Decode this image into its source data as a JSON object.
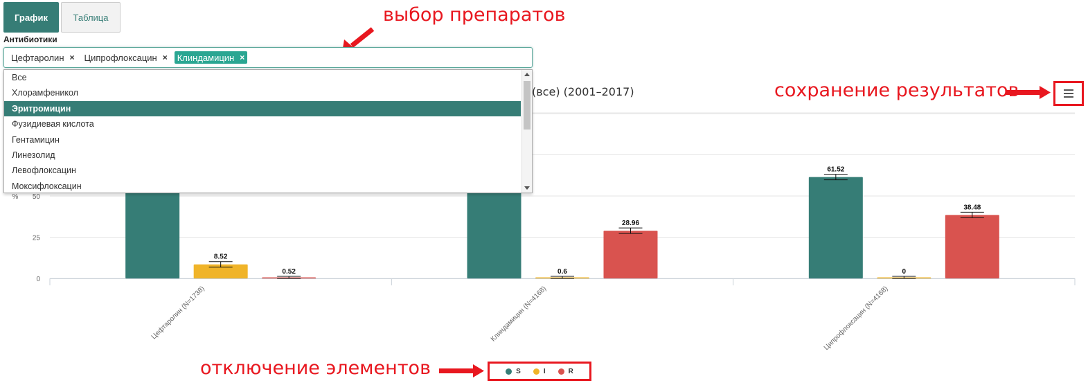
{
  "tabs": [
    {
      "label": "График",
      "active": true
    },
    {
      "label": "Таблица",
      "active": false
    }
  ],
  "filter": {
    "label": "Антибиотики",
    "selected": [
      {
        "label": "Цефтаролин",
        "remove": "×"
      },
      {
        "label": "Ципрофлоксацин",
        "remove": "×"
      },
      {
        "label": "Клиндамицин",
        "remove": "×"
      }
    ],
    "options": [
      "Все",
      "Хлорамфеникол",
      "Эритромицин",
      "Фузидиевая кислота",
      "Гентамицин",
      "Линезолид",
      "Левофлоксацин",
      "Моксифлоксацин"
    ],
    "highlighted": "Эритромицин"
  },
  "annotations": {
    "selection": "выбор препаратов",
    "save": "сохранение результатов",
    "toggle": "отключение элементов"
  },
  "colors": {
    "S": "#367d76",
    "I": "#f0b429",
    "R": "#d9534f",
    "accent": "#e8171f"
  },
  "chart_data": {
    "type": "bar",
    "title": "(все) (2001–2017)",
    "ylabel": "%",
    "ylim": [
      0,
      100
    ],
    "yticks": [
      0,
      25,
      50
    ],
    "categories": [
      "Цефтаролин (N=1738)",
      "Клиндамицин (N=4168)",
      "Ципрофлоксацин (N=4168)"
    ],
    "series": [
      {
        "name": "S",
        "values": [
          90.96,
          70.44,
          61.52
        ],
        "labels": [
          "",
          "",
          "61.52"
        ]
      },
      {
        "name": "I",
        "values": [
          8.52,
          0.6,
          0
        ],
        "labels": [
          "8.52",
          "0.6",
          "0"
        ]
      },
      {
        "name": "R",
        "values": [
          0.52,
          28.96,
          38.48
        ],
        "labels": [
          "0.52",
          "28.96",
          "38.48"
        ]
      }
    ],
    "legend": {
      "position": "bottom",
      "items": [
        "S",
        "I",
        "R"
      ]
    }
  }
}
